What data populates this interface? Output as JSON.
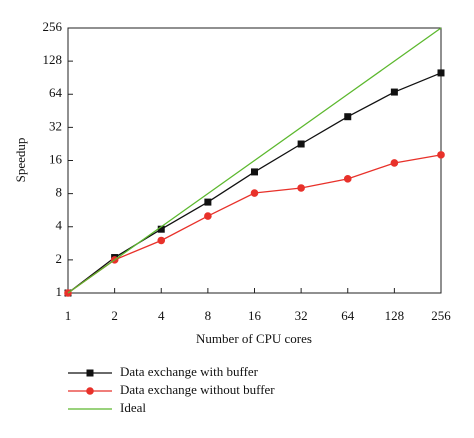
{
  "chart_data": {
    "type": "line",
    "x_label": "Number of CPU cores",
    "y_label": "Speedup",
    "x": [
      1,
      2,
      4,
      8,
      16,
      32,
      64,
      128,
      256
    ],
    "series": [
      {
        "name": "Data exchange with buffer",
        "color": "#111111",
        "marker": "square",
        "values": [
          1,
          2.1,
          3.8,
          6.7,
          12.6,
          22.6,
          40,
          67,
          100
        ]
      },
      {
        "name": "Data exchange without buffer",
        "color": "#e8312a",
        "marker": "circle",
        "values": [
          1,
          2,
          3.0,
          5.0,
          8.1,
          9.0,
          10.9,
          15.2,
          18
        ]
      },
      {
        "name": "Ideal",
        "color": "#5cb82e",
        "marker": "none",
        "values": [
          1,
          2,
          4,
          8,
          16,
          32,
          64,
          128,
          256
        ]
      }
    ],
    "xlim": [
      1,
      256
    ],
    "ylim": [
      1,
      256
    ],
    "xticks": [
      1,
      2,
      4,
      8,
      16,
      32,
      64,
      128,
      256
    ],
    "yticks": [
      1,
      2,
      4,
      8,
      16,
      32,
      64,
      128,
      256
    ],
    "log_base": 2,
    "legend": "below"
  }
}
